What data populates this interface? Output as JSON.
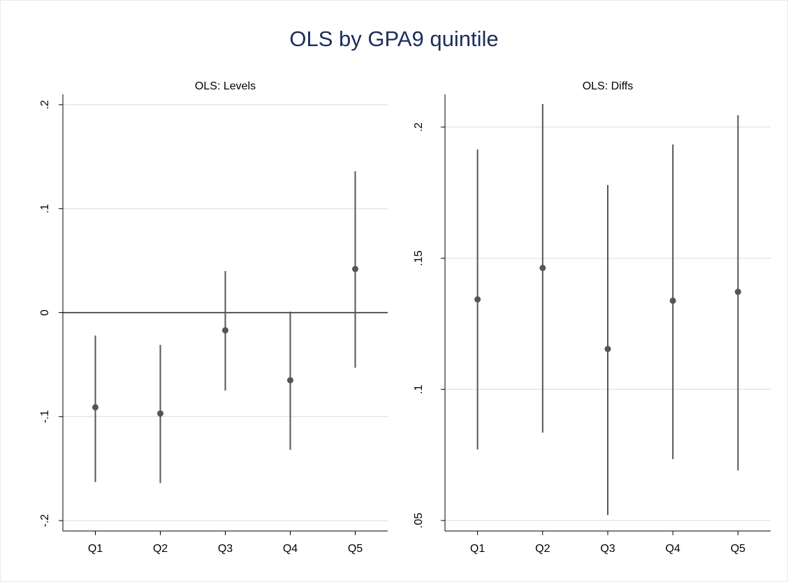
{
  "title": "OLS by GPA9 quintile",
  "chart_data": [
    {
      "type": "dot-ci",
      "title": "OLS: Levels",
      "categories": [
        "Q1",
        "Q2",
        "Q3",
        "Q4",
        "Q5"
      ],
      "values": [
        -0.091,
        -0.097,
        -0.017,
        -0.065,
        0.042
      ],
      "ci_low": [
        -0.163,
        -0.164,
        -0.075,
        -0.132,
        -0.053
      ],
      "ci_high": [
        -0.022,
        -0.031,
        0.04,
        0.001,
        0.136
      ],
      "color": "#555555",
      "ylim": [
        -0.21,
        0.21
      ],
      "yticks": [
        {
          "value": -0.2,
          "label": "-.2"
        },
        {
          "value": -0.1,
          "label": "-.1"
        },
        0,
        {
          "value": 0.1,
          "label": ".1"
        },
        {
          "value": 0.2,
          "label": ".2"
        }
      ],
      "grid": true,
      "refline": 0
    },
    {
      "type": "dot-ci",
      "title": "OLS: Diffs",
      "categories": [
        "Q1",
        "Q2",
        "Q3",
        "Q4",
        "Q5"
      ],
      "values": [
        0.1343,
        0.1463,
        0.1154,
        0.1338,
        0.1372
      ],
      "ci_low": [
        0.0771,
        0.0835,
        0.0521,
        0.0734,
        0.0691
      ],
      "ci_high": [
        0.1915,
        0.2088,
        0.1779,
        0.1934,
        0.2045
      ],
      "color": "#555555",
      "ylim": [
        0.046,
        0.2125
      ],
      "yticks": [
        {
          "value": 0.05,
          "label": ".05"
        },
        {
          "value": 0.1,
          "label": ".1"
        },
        {
          "value": 0.15,
          "label": ".15"
        },
        {
          "value": 0.2,
          "label": ".2"
        }
      ],
      "grid": true
    }
  ]
}
